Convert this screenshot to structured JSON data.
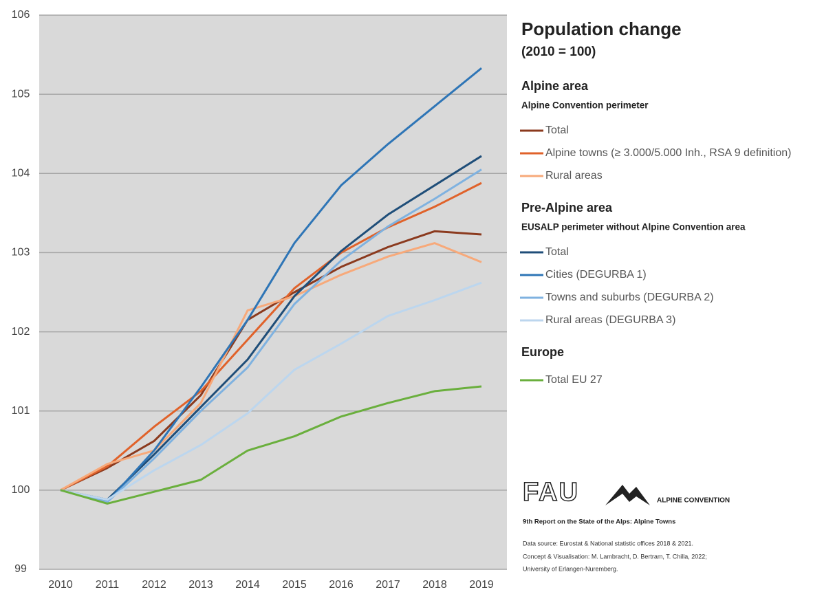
{
  "chart_data": {
    "type": "line",
    "title": "Population change",
    "subtitle": "(2010 = 100)",
    "categories": [
      "2010",
      "2011",
      "2012",
      "2013",
      "2014",
      "2015",
      "2016",
      "2017",
      "2018",
      "2019"
    ],
    "ylim": [
      99,
      106
    ],
    "yticks": [
      99,
      100,
      101,
      102,
      103,
      104,
      105,
      106
    ],
    "grid": true,
    "groups": [
      {
        "title": "Alpine area",
        "subtitle": "Alpine Convention perimeter",
        "series": [
          {
            "name": "Total",
            "color": "#8b3a1e",
            "values": [
              100,
              100.28,
              100.62,
              101.2,
              102.15,
              102.5,
              102.82,
              103.07,
              103.27,
              103.23
            ]
          },
          {
            "name": "Alpine towns (≥ 3.000/5.000 Inh., RSA 9 definition)",
            "color": "#e0622a",
            "values": [
              100,
              100.3,
              100.8,
              101.25,
              101.9,
              102.55,
              103.0,
              103.32,
              103.58,
              103.88
            ]
          },
          {
            "name": "Rural areas",
            "color": "#f7a97a",
            "values": [
              100,
              100.33,
              100.5,
              101.1,
              102.27,
              102.45,
              102.72,
              102.95,
              103.12,
              102.88
            ]
          }
        ]
      },
      {
        "title": "Pre-Alpine area",
        "subtitle": "EUSALP perimeter without Alpine Convention area",
        "series": [
          {
            "name": "Total",
            "color": "#1f4e79",
            "values": [
              100,
              99.88,
              100.45,
              101.05,
              101.65,
              102.45,
              103.02,
              103.48,
              103.85,
              104.22
            ]
          },
          {
            "name": "Cities (DEGURBA 1)",
            "color": "#2e75b6",
            "values": [
              100,
              99.85,
              100.5,
              101.3,
              102.15,
              103.12,
              103.85,
              104.37,
              104.85,
              105.33
            ]
          },
          {
            "name": "Towns and suburbs (DEGURBA 2)",
            "color": "#7fb2e0",
            "values": [
              100,
              99.85,
              100.4,
              101.0,
              101.55,
              102.35,
              102.9,
              103.33,
              103.68,
              104.05
            ]
          },
          {
            "name": "Rural areas (DEGURBA 3)",
            "color": "#bcd6ee",
            "values": [
              100,
              99.88,
              100.25,
              100.57,
              100.97,
              101.52,
              101.85,
              102.2,
              102.4,
              102.62
            ]
          }
        ]
      },
      {
        "title": "Europe",
        "series": [
          {
            "name": "Total EU 27",
            "color": "#6aaf3d",
            "values": [
              100,
              99.83,
              99.98,
              100.13,
              100.5,
              100.68,
              100.93,
              101.1,
              101.25,
              101.31
            ]
          }
        ]
      }
    ]
  },
  "footer": {
    "logo_left": "FAU",
    "logo_right": "ALPINE CONVENTION",
    "report": "9th Report on the State of the Alps: Alpine Towns",
    "source": "Data source: Eurostat & National statistic offices 2018 & 2021.",
    "concept": "Concept & Visualisation: M. Lambracht, D. Bertram, T. Chilla, 2022;",
    "university": "University of Erlangen-Nuremberg."
  }
}
